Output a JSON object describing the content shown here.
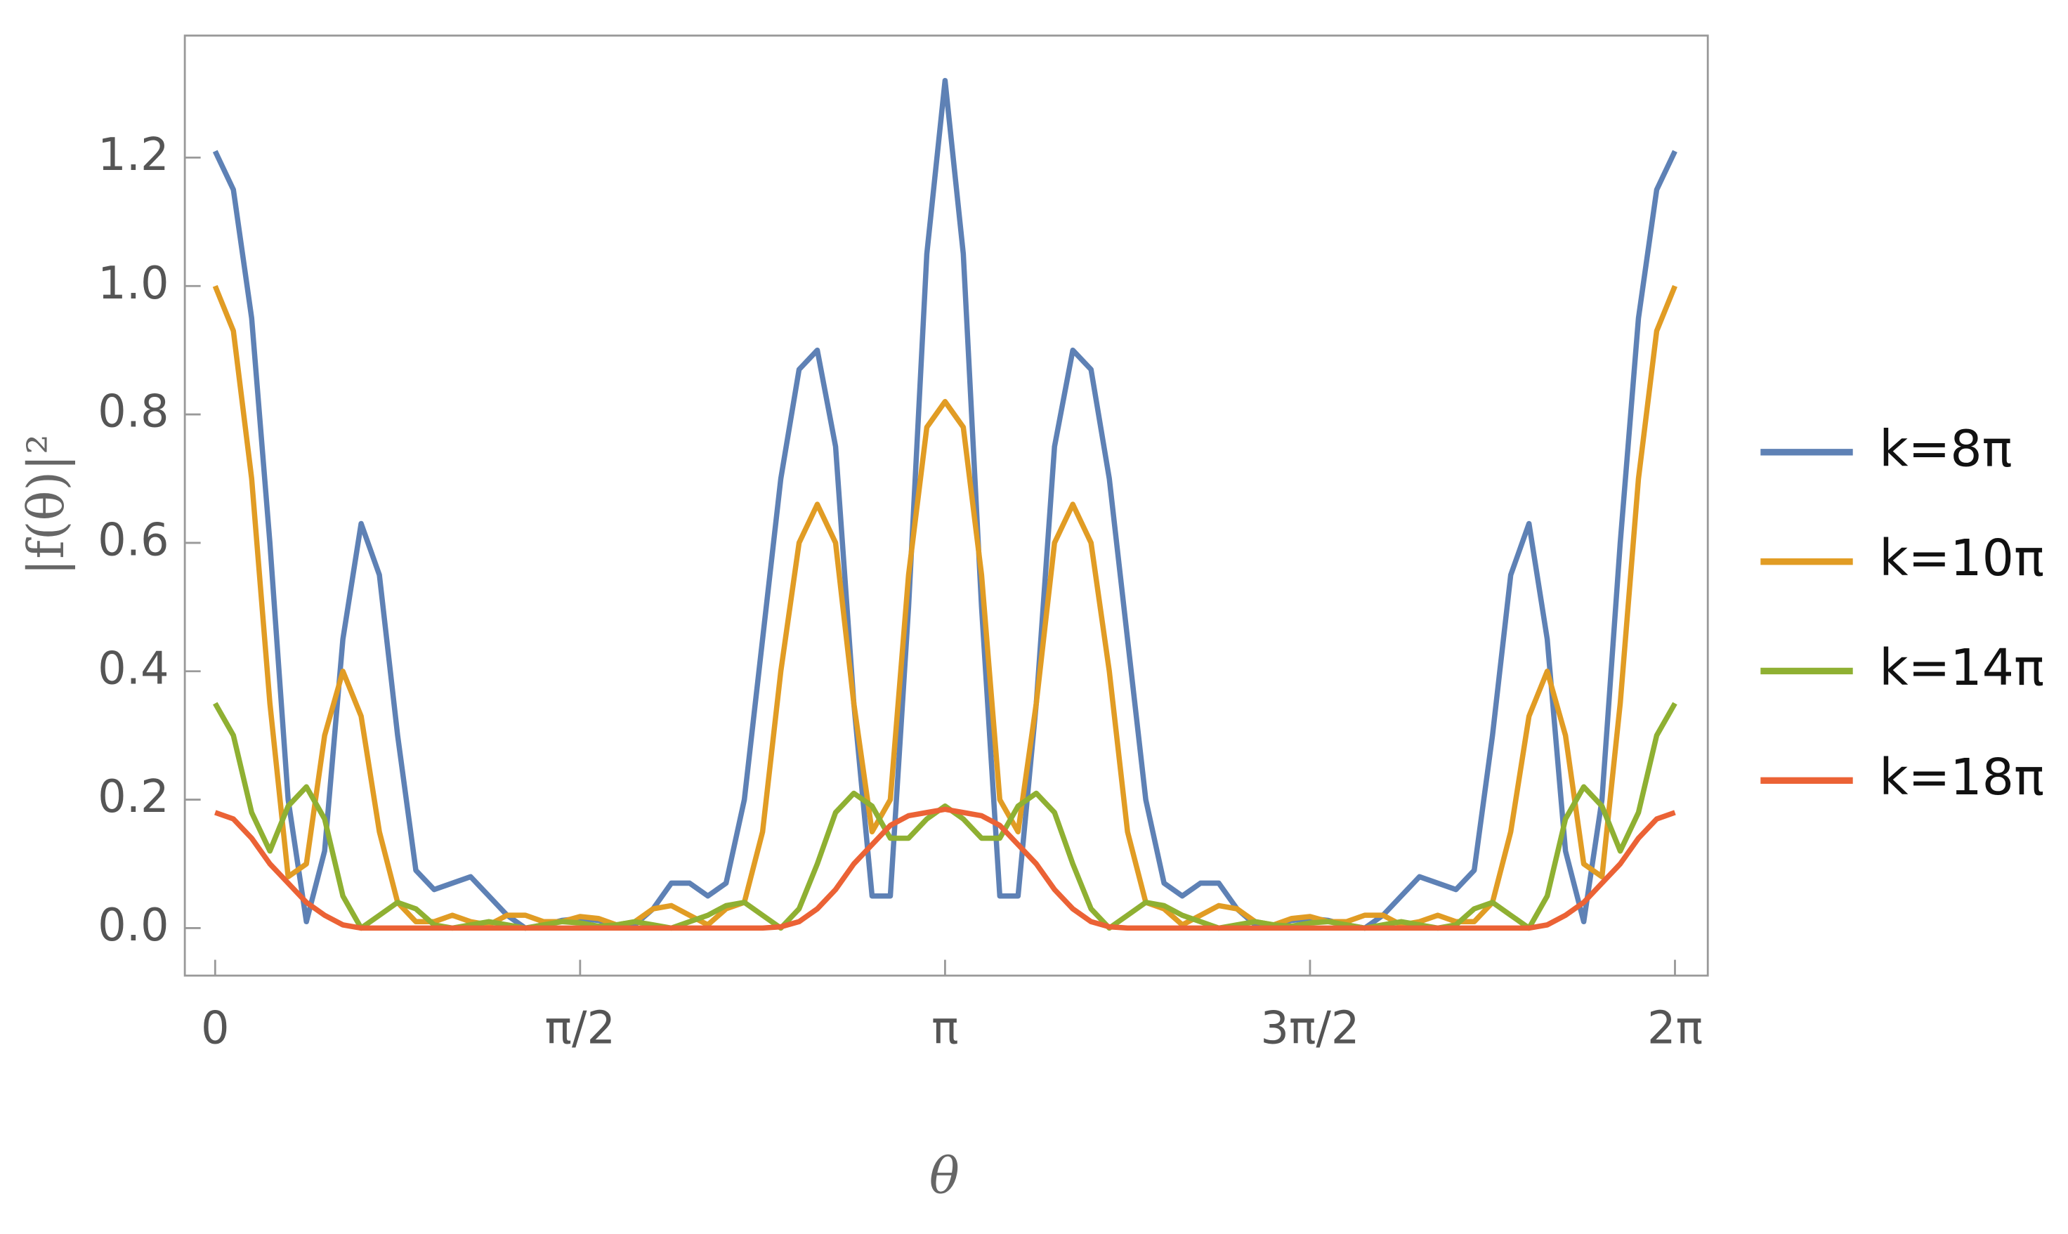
{
  "chart_data": {
    "type": "line",
    "xlabel": "θ",
    "ylabel": "|f(θ)|²",
    "x": [
      0,
      0.0785,
      0.1571,
      0.2356,
      0.3142,
      0.3927,
      0.4712,
      0.5498,
      0.6283,
      0.7069,
      0.7854,
      0.8639,
      0.9425,
      1.021,
      1.0996,
      1.1781,
      1.2566,
      1.3352,
      1.4137,
      1.4923,
      1.5708,
      1.6493,
      1.7279,
      1.8064,
      1.885,
      1.9635,
      2.042,
      2.1206,
      2.1991,
      2.2777,
      2.3562,
      2.4347,
      2.5133,
      2.5918,
      2.6704,
      2.7489,
      2.8274,
      2.906,
      2.9845,
      3.0631,
      3.1416,
      3.2201,
      3.2987,
      3.3772,
      3.4558,
      3.5343,
      3.6128,
      3.6914,
      3.7699,
      3.8485,
      3.927,
      4.0055,
      4.0841,
      4.1626,
      4.2412,
      4.3197,
      4.3982,
      4.4768,
      4.5553,
      4.6339,
      4.7124,
      4.7909,
      4.8695,
      4.948,
      5.0265,
      5.1051,
      5.1836,
      5.2622,
      5.3407,
      5.4192,
      5.4978,
      5.5763,
      5.6549,
      5.7334,
      5.812,
      5.8905,
      5.969,
      6.0476,
      6.1261,
      6.2046,
      6.2832
    ],
    "series": [
      {
        "name": "k=8π",
        "color": "#5e81b5",
        "values": [
          1.21,
          1.15,
          0.95,
          0.6,
          0.2,
          0.01,
          0.12,
          0.45,
          0.63,
          0.55,
          0.3,
          0.09,
          0.06,
          0.07,
          0.08,
          0.05,
          0.02,
          0,
          0.005,
          0.012,
          0.015,
          0.012,
          0.005,
          0.005,
          0.03,
          0.07,
          0.07,
          0.05,
          0.07,
          0.2,
          0.45,
          0.7,
          0.87,
          0.9,
          0.75,
          0.35,
          0.05,
          0.05,
          0.5,
          1.05,
          1.32,
          1.05,
          0.5,
          0.05,
          0.05,
          0.35,
          0.75,
          0.9,
          0.87,
          0.7,
          0.45,
          0.2,
          0.07,
          0.05,
          0.07,
          0.07,
          0.03,
          0.005,
          0.005,
          0.012,
          0.015,
          0.012,
          0.005,
          0,
          0.02,
          0.05,
          0.08,
          0.07,
          0.06,
          0.09,
          0.3,
          0.55,
          0.63,
          0.45,
          0.12,
          0.01,
          0.2,
          0.6,
          0.95,
          1.15,
          1.21
        ]
      },
      {
        "name": "k=10π",
        "color": "#e19c24",
        "values": [
          1,
          0.93,
          0.7,
          0.35,
          0.08,
          0.1,
          0.3,
          0.4,
          0.33,
          0.15,
          0.04,
          0.01,
          0.01,
          0.02,
          0.01,
          0.005,
          0.02,
          0.02,
          0.01,
          0.01,
          0.018,
          0.015,
          0.005,
          0.01,
          0.03,
          0.035,
          0.02,
          0.005,
          0.03,
          0.04,
          0.15,
          0.4,
          0.6,
          0.66,
          0.6,
          0.35,
          0.15,
          0.2,
          0.55,
          0.78,
          0.82,
          0.78,
          0.55,
          0.2,
          0.15,
          0.35,
          0.6,
          0.66,
          0.6,
          0.4,
          0.15,
          0.04,
          0.03,
          0.005,
          0.02,
          0.035,
          0.03,
          0.01,
          0.005,
          0.015,
          0.018,
          0.01,
          0.01,
          0.02,
          0.02,
          0.005,
          0.01,
          0.02,
          0.01,
          0.01,
          0.04,
          0.15,
          0.33,
          0.4,
          0.3,
          0.1,
          0.08,
          0.35,
          0.7,
          0.93,
          1
        ]
      },
      {
        "name": "k=14π",
        "color": "#8fb032",
        "values": [
          0.35,
          0.3,
          0.18,
          0.12,
          0.19,
          0.22,
          0.17,
          0.05,
          0,
          0.02,
          0.04,
          0.03,
          0.005,
          0,
          0.005,
          0.01,
          0.005,
          0,
          0.005,
          0.01,
          0.008,
          0.003,
          0.005,
          0.01,
          0.005,
          0,
          0.01,
          0.02,
          0.035,
          0.04,
          0.02,
          0,
          0.03,
          0.1,
          0.18,
          0.21,
          0.19,
          0.14,
          0.14,
          0.17,
          0.19,
          0.17,
          0.14,
          0.14,
          0.19,
          0.21,
          0.18,
          0.1,
          0.03,
          0,
          0.02,
          0.04,
          0.035,
          0.02,
          0.01,
          0,
          0.005,
          0.01,
          0.005,
          0.003,
          0.008,
          0.01,
          0.005,
          0,
          0.005,
          0.01,
          0.005,
          0,
          0.005,
          0.03,
          0.04,
          0.02,
          0,
          0.05,
          0.17,
          0.22,
          0.19,
          0.12,
          0.18,
          0.3,
          0.35
        ]
      },
      {
        "name": "k=18π",
        "color": "#eb6235",
        "values": [
          0.18,
          0.17,
          0.14,
          0.1,
          0.07,
          0.04,
          0.02,
          0.005,
          0,
          0,
          0,
          0,
          0,
          0,
          0,
          0,
          0,
          0,
          0,
          0,
          0,
          0,
          0,
          0,
          0,
          0,
          0,
          0,
          0,
          0,
          0,
          0.002,
          0.01,
          0.03,
          0.06,
          0.1,
          0.13,
          0.16,
          0.175,
          0.18,
          0.185,
          0.18,
          0.175,
          0.16,
          0.13,
          0.1,
          0.06,
          0.03,
          0.01,
          0.002,
          0,
          0,
          0,
          0,
          0,
          0,
          0,
          0,
          0,
          0,
          0,
          0,
          0,
          0,
          0,
          0,
          0,
          0,
          0,
          0,
          0,
          0,
          0,
          0.005,
          0.02,
          0.04,
          0.07,
          0.1,
          0.14,
          0.17,
          0.18
        ]
      }
    ],
    "xlim": [
      -0.1305,
      6.4245
    ],
    "ylim": [
      -0.074,
      1.39
    ],
    "xticks": [
      0,
      {
        "value": 1.5708,
        "label": "π/2"
      },
      {
        "value": 3.1416,
        "label": "π"
      },
      {
        "value": 4.7124,
        "label": "3π/2"
      },
      {
        "value": 6.2832,
        "label": "2π"
      }
    ],
    "yticks": [
      {
        "value": 0,
        "label": "0.0"
      },
      0.2,
      0.4,
      0.6,
      0.8,
      {
        "value": 1,
        "label": "1.0"
      },
      1.2
    ],
    "legend": "right"
  }
}
